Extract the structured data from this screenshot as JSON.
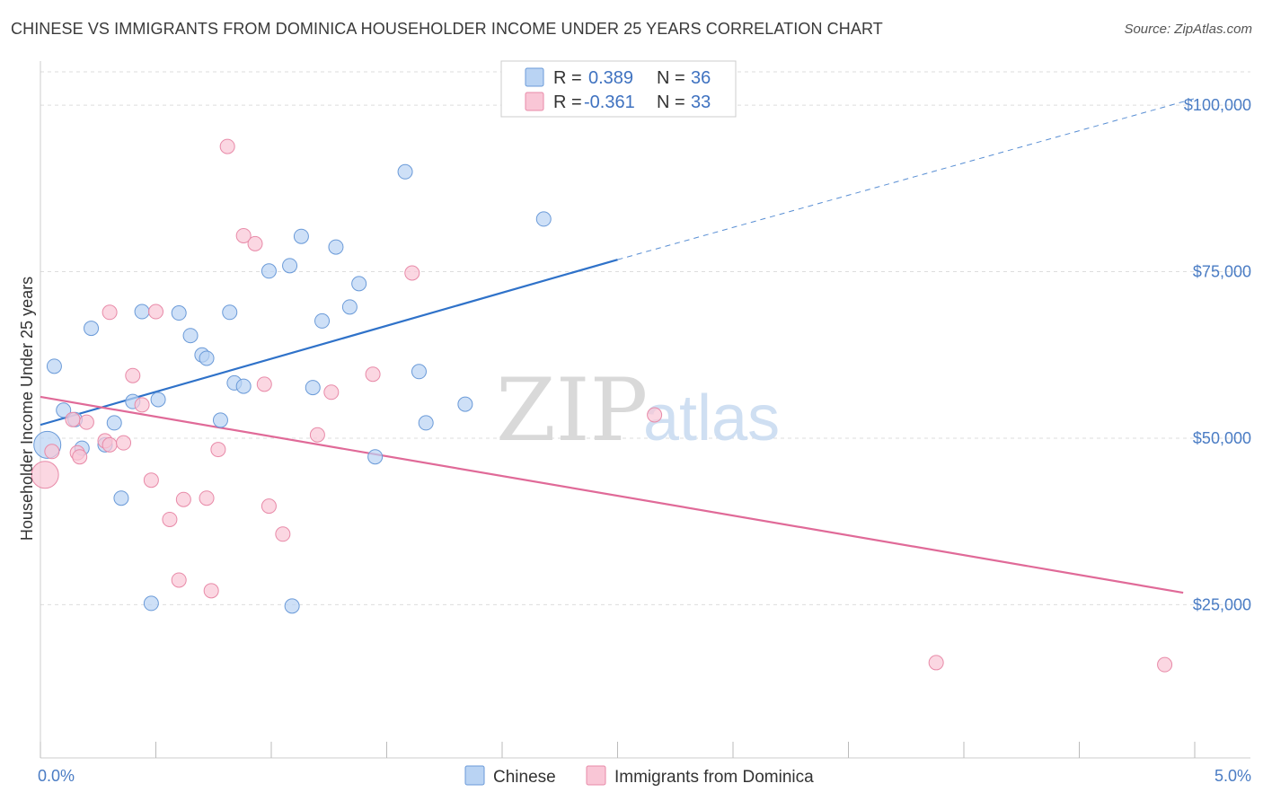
{
  "header": {
    "title": "CHINESE VS IMMIGRANTS FROM DOMINICA HOUSEHOLDER INCOME UNDER 25 YEARS CORRELATION CHART",
    "source": "Source: ZipAtlas.com"
  },
  "watermark": {
    "zip": "ZIP",
    "atlas": "atlas"
  },
  "colors": {
    "chinese_fill": "#b9d3f3",
    "chinese_stroke": "#6a9ad8",
    "chinese_line": "#2f72c9",
    "dominica_fill": "#f9c6d6",
    "dominica_stroke": "#e88aa8",
    "dominica_line": "#e06a98",
    "grid": "#dddddd",
    "axis_text": "#4a7cc4"
  },
  "legend": {
    "items": [
      {
        "r_label": "R =",
        "r_value": "0.389",
        "n_label": "N =",
        "n_value": "36"
      },
      {
        "r_label": "R =",
        "r_value": "-0.361",
        "n_label": "N =",
        "n_value": "33"
      }
    ]
  },
  "chart_data": {
    "type": "scatter",
    "xlabel": "",
    "ylabel": "Householder Income Under 25 years",
    "xlim": [
      0,
      5
    ],
    "ylim": [
      2000,
      105000
    ],
    "x_tick_labels": [
      "0.0%",
      "5.0%"
    ],
    "y_ticks": [
      25000,
      50000,
      75000,
      100000
    ],
    "y_tick_labels": [
      "$25,000",
      "$50,000",
      "$75,000",
      "$100,000"
    ],
    "grid": true,
    "legend_placement": "top-center",
    "series": [
      {
        "name": "Chinese",
        "trend": {
          "x": [
            0,
            2.5
          ],
          "y": [
            52000,
            76800
          ],
          "dashed_to": [
            5,
            101000
          ]
        },
        "points": [
          [
            0.03,
            49000
          ],
          [
            0.06,
            60800
          ],
          [
            0.1,
            54200
          ],
          [
            0.15,
            52800
          ],
          [
            0.18,
            48500
          ],
          [
            0.22,
            66500
          ],
          [
            0.28,
            49000
          ],
          [
            0.32,
            52300
          ],
          [
            0.35,
            41000
          ],
          [
            0.4,
            55500
          ],
          [
            0.44,
            69000
          ],
          [
            0.48,
            25200
          ],
          [
            0.51,
            55800
          ],
          [
            0.6,
            68800
          ],
          [
            0.65,
            65400
          ],
          [
            0.7,
            62500
          ],
          [
            0.72,
            62000
          ],
          [
            0.78,
            52700
          ],
          [
            0.82,
            68900
          ],
          [
            0.84,
            58300
          ],
          [
            0.88,
            57800
          ],
          [
            0.99,
            75100
          ],
          [
            1.08,
            75900
          ],
          [
            1.09,
            24800
          ],
          [
            1.13,
            80300
          ],
          [
            1.18,
            57600
          ],
          [
            1.22,
            67600
          ],
          [
            1.28,
            78700
          ],
          [
            1.34,
            69700
          ],
          [
            1.38,
            73200
          ],
          [
            1.45,
            47200
          ],
          [
            1.58,
            90000
          ],
          [
            1.64,
            60000
          ],
          [
            1.67,
            52300
          ],
          [
            1.84,
            55100
          ],
          [
            2.18,
            82900
          ]
        ]
      },
      {
        "name": "Immigrants from Dominica",
        "trend": {
          "x": [
            0,
            4.95
          ],
          "y": [
            56200,
            26800
          ]
        },
        "points": [
          [
            0.02,
            44500
          ],
          [
            0.05,
            48000
          ],
          [
            0.14,
            52800
          ],
          [
            0.16,
            47800
          ],
          [
            0.17,
            47200
          ],
          [
            0.2,
            52400
          ],
          [
            0.28,
            49600
          ],
          [
            0.3,
            49000
          ],
          [
            0.3,
            68900
          ],
          [
            0.36,
            49300
          ],
          [
            0.4,
            59400
          ],
          [
            0.44,
            55000
          ],
          [
            0.48,
            43700
          ],
          [
            0.5,
            69000
          ],
          [
            0.56,
            37800
          ],
          [
            0.6,
            28700
          ],
          [
            0.62,
            40800
          ],
          [
            0.72,
            41000
          ],
          [
            0.74,
            27100
          ],
          [
            0.77,
            48300
          ],
          [
            0.81,
            93800
          ],
          [
            0.88,
            80400
          ],
          [
            0.93,
            79200
          ],
          [
            0.97,
            58100
          ],
          [
            0.99,
            39800
          ],
          [
            1.05,
            35600
          ],
          [
            1.2,
            50500
          ],
          [
            1.26,
            56900
          ],
          [
            1.44,
            59600
          ],
          [
            1.61,
            74800
          ],
          [
            2.66,
            53500
          ],
          [
            3.88,
            16300
          ],
          [
            4.87,
            16000
          ]
        ]
      }
    ]
  }
}
